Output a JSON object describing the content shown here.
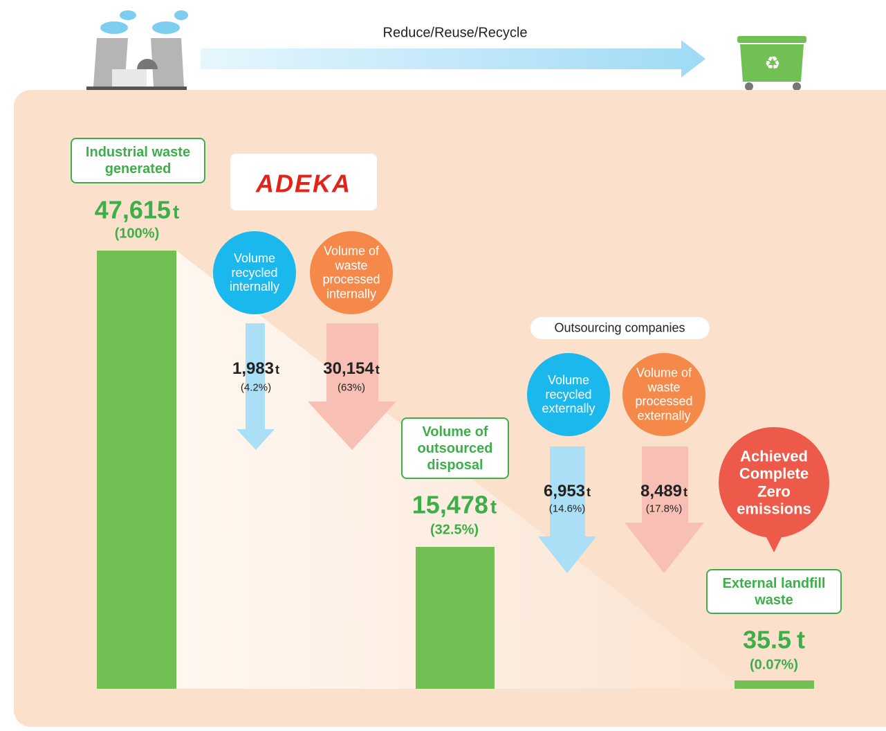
{
  "header": {
    "flow_label": "Reduce/Reuse/Recycle"
  },
  "logo": "ADEKA",
  "stages": [
    {
      "label": "Industrial waste generated",
      "amount": "47,615",
      "unit": "t",
      "share": "(100%)"
    },
    {
      "label": "Volume of outsourced disposal",
      "amount": "15,478",
      "unit": "t",
      "share": "(32.5%)"
    },
    {
      "label": "External landfill waste",
      "amount": "35.5",
      "unit": "t",
      "share": "(0.07%)"
    }
  ],
  "flows": [
    {
      "label": "Volume recycled internally",
      "amount": "1,983",
      "unit": "t",
      "share": "(4.2%)"
    },
    {
      "label": "Volume of waste processed internally",
      "amount": "30,154",
      "unit": "t",
      "share": "(63%)"
    },
    {
      "label": "Volume recycled externally",
      "amount": "6,953",
      "unit": "t",
      "share": "(14.6%)"
    },
    {
      "label": "Volume of waste processed externally",
      "amount": "8,489",
      "unit": "t",
      "share": "(17.8%)"
    }
  ],
  "outsourcing_label": "Outsourcing companies",
  "achievement": "Achieved Complete Zero emissions"
}
